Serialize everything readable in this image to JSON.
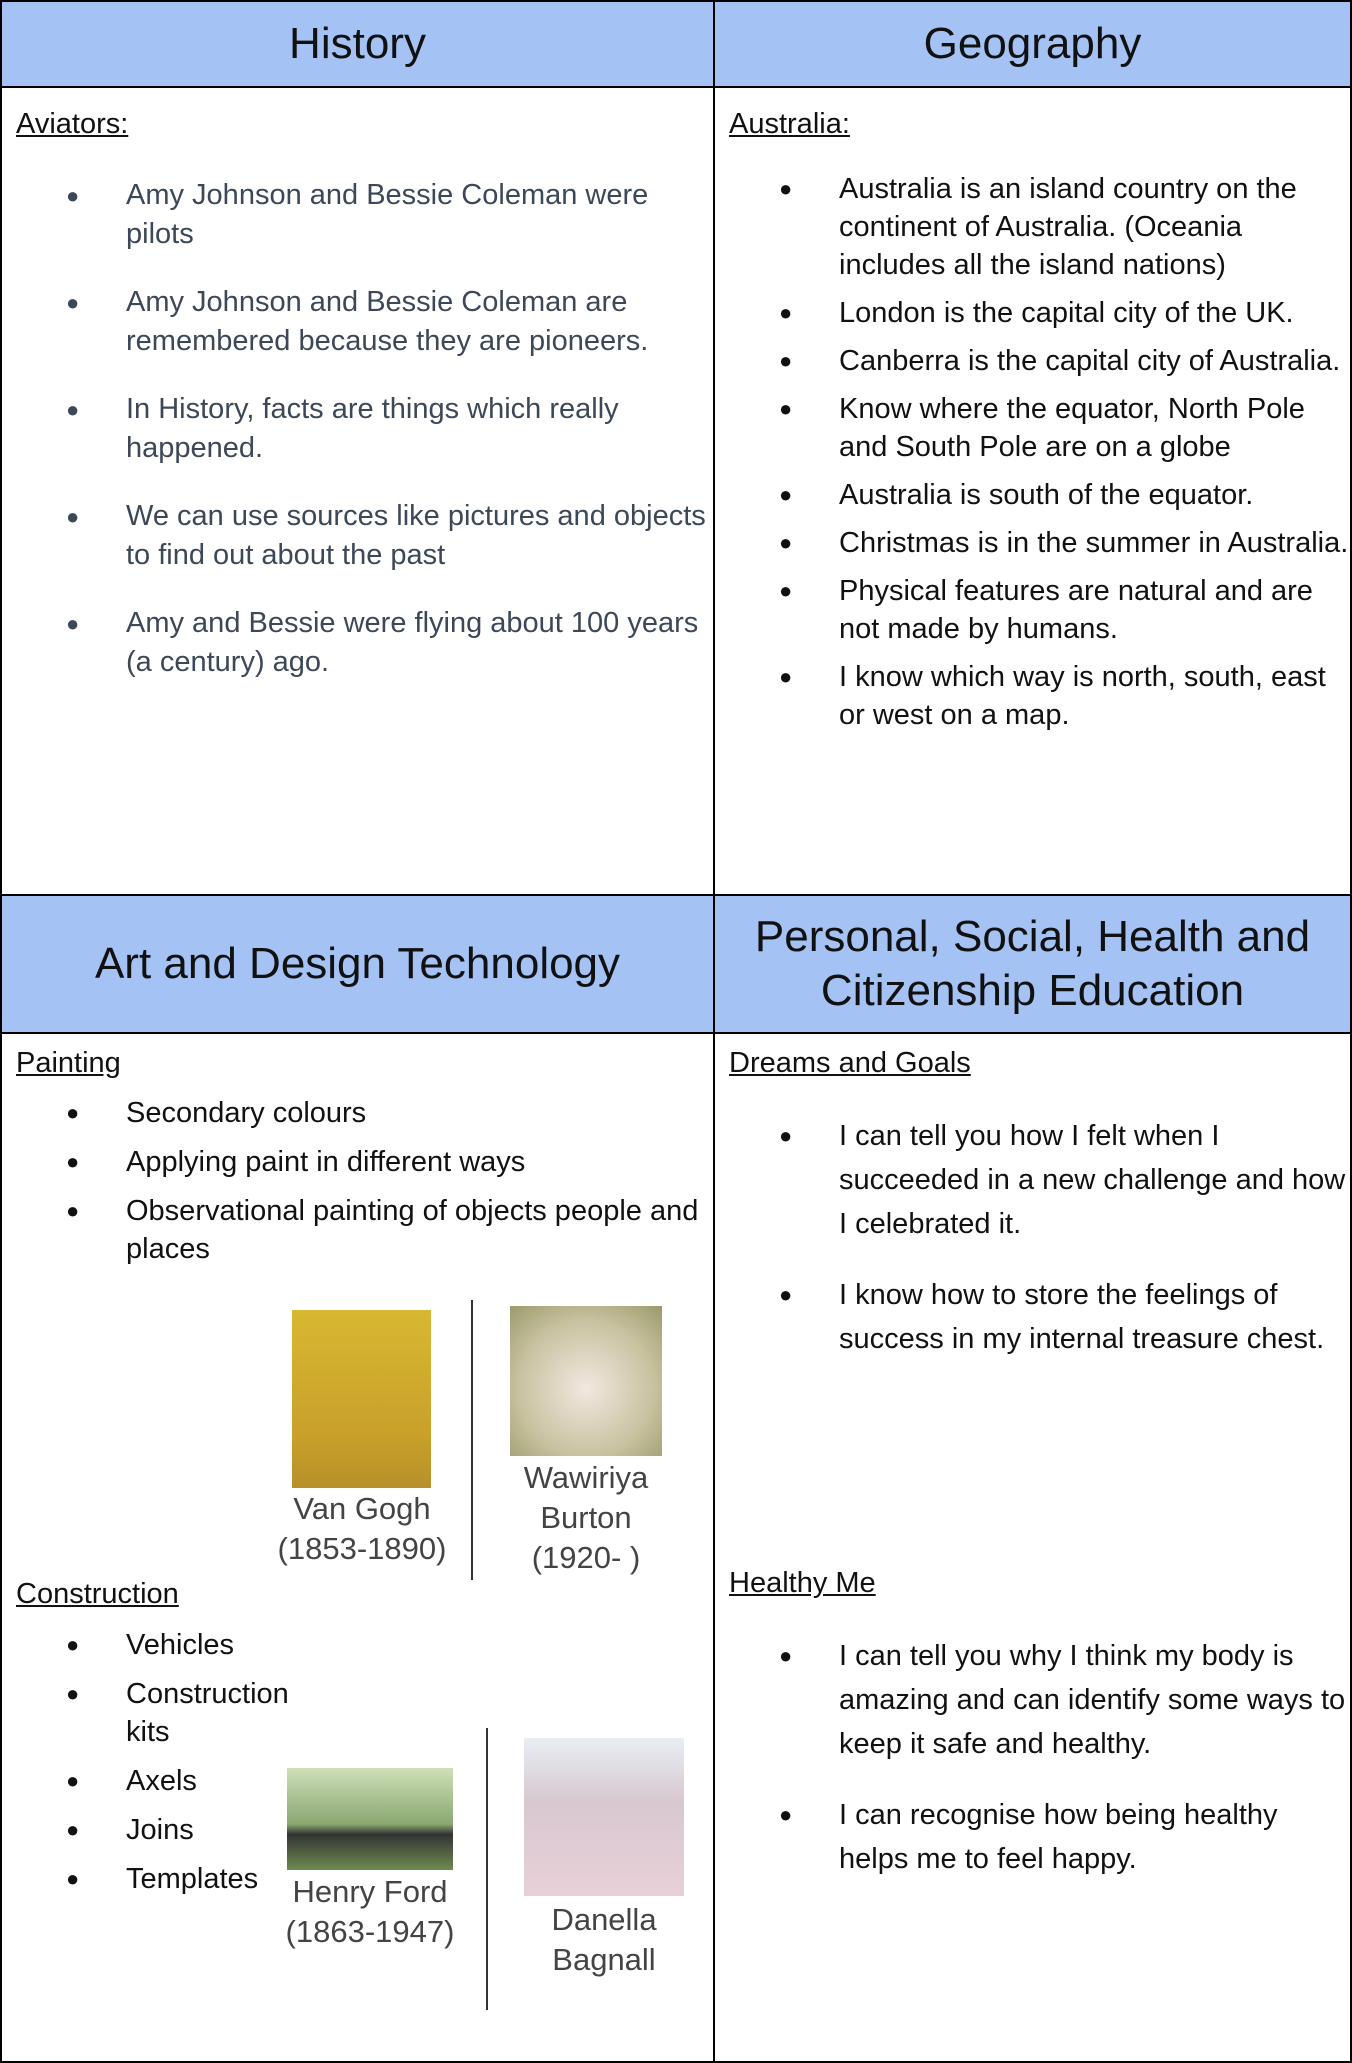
{
  "history": {
    "heading": "History",
    "label": "Aviators:",
    "bullets": [
      "Amy Johnson and Bessie Coleman were pilots",
      "Amy Johnson and Bessie Coleman are remembered because they are pioneers.",
      "In History, facts are things which really happened.",
      "We can use sources like pictures and objects to find out about the past",
      "Amy and Bessie were flying about 100 years (a century) ago."
    ]
  },
  "geography": {
    "heading": "Geography",
    "label": "Australia:",
    "bullets": [
      "Australia is an island country on the continent of Australia. (Oceania includes all the island nations)",
      "London is the capital city of the UK.",
      "Canberra is the capital city of Australia.",
      "Know where the equator, North Pole and South Pole are on a globe",
      "Australia is south of the equator.",
      "Christmas is in the summer in Australia.",
      "Physical features are natural and are not made by humans.",
      "I know which way is north, south, east or west on a map."
    ]
  },
  "art": {
    "heading": "Art and Design Technology",
    "painting": {
      "label": "Painting",
      "bullets": [
        "Secondary colours",
        "Applying paint in different ways",
        "Observational painting of objects people and places"
      ],
      "figures": [
        {
          "caption": [
            "Van Gogh",
            "(1853-1890)"
          ]
        },
        {
          "caption": [
            "Wawiriya",
            "Burton",
            "(1920- )"
          ]
        }
      ]
    },
    "construction": {
      "label": "Construction",
      "bullets": [
        "Vehicles",
        "Construction kits",
        "Axels",
        "Joins",
        "Templates"
      ],
      "figures": [
        {
          "caption": [
            "Henry Ford",
            "(1863-1947)"
          ]
        },
        {
          "caption": [
            "Danella",
            "Bagnall"
          ]
        }
      ]
    }
  },
  "pshe": {
    "heading": "Personal, Social, Health and Citizenship Education",
    "sections": [
      {
        "label": "Dreams and Goals",
        "bullets": [
          "I can tell you how I felt when I succeeded in a new challenge and how I celebrated it.",
          "I know how to store the feelings of success in my internal treasure chest."
        ]
      },
      {
        "label": "Healthy Me",
        "bullets": [
          "I can tell you why I think my body is amazing and can identify some ways to keep it safe and healthy.",
          "I can recognise how being healthy helps me to feel happy."
        ]
      }
    ]
  }
}
